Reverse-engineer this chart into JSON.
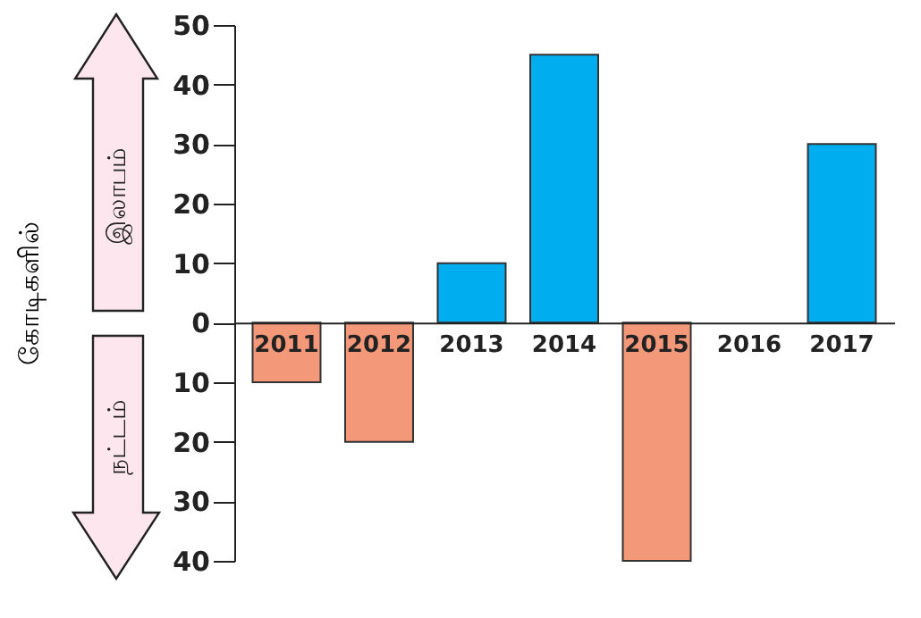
{
  "chart_data": {
    "type": "bar",
    "ylabel": "கோடிகளில்",
    "categories": [
      "2011",
      "2012",
      "2013",
      "2014",
      "2015",
      "2016",
      "2017"
    ],
    "values": [
      -10,
      -20,
      10,
      45,
      -40,
      0,
      30
    ],
    "colors": [
      "#f4987a",
      "#f4987a",
      "#00aeef",
      "#00aeef",
      "#f4987a",
      "#00aeef",
      "#00aeef"
    ],
    "ylim": [
      -40,
      50
    ],
    "yticks": [
      {
        "value": -40,
        "label": "40"
      },
      {
        "value": -30,
        "label": "30"
      },
      {
        "value": -20,
        "label": "20"
      },
      {
        "value": -10,
        "label": "10"
      },
      0,
      10,
      20,
      30,
      40,
      50
    ],
    "grid": false,
    "annotations": [
      "இலாபம்",
      "நட்டம்"
    ]
  }
}
